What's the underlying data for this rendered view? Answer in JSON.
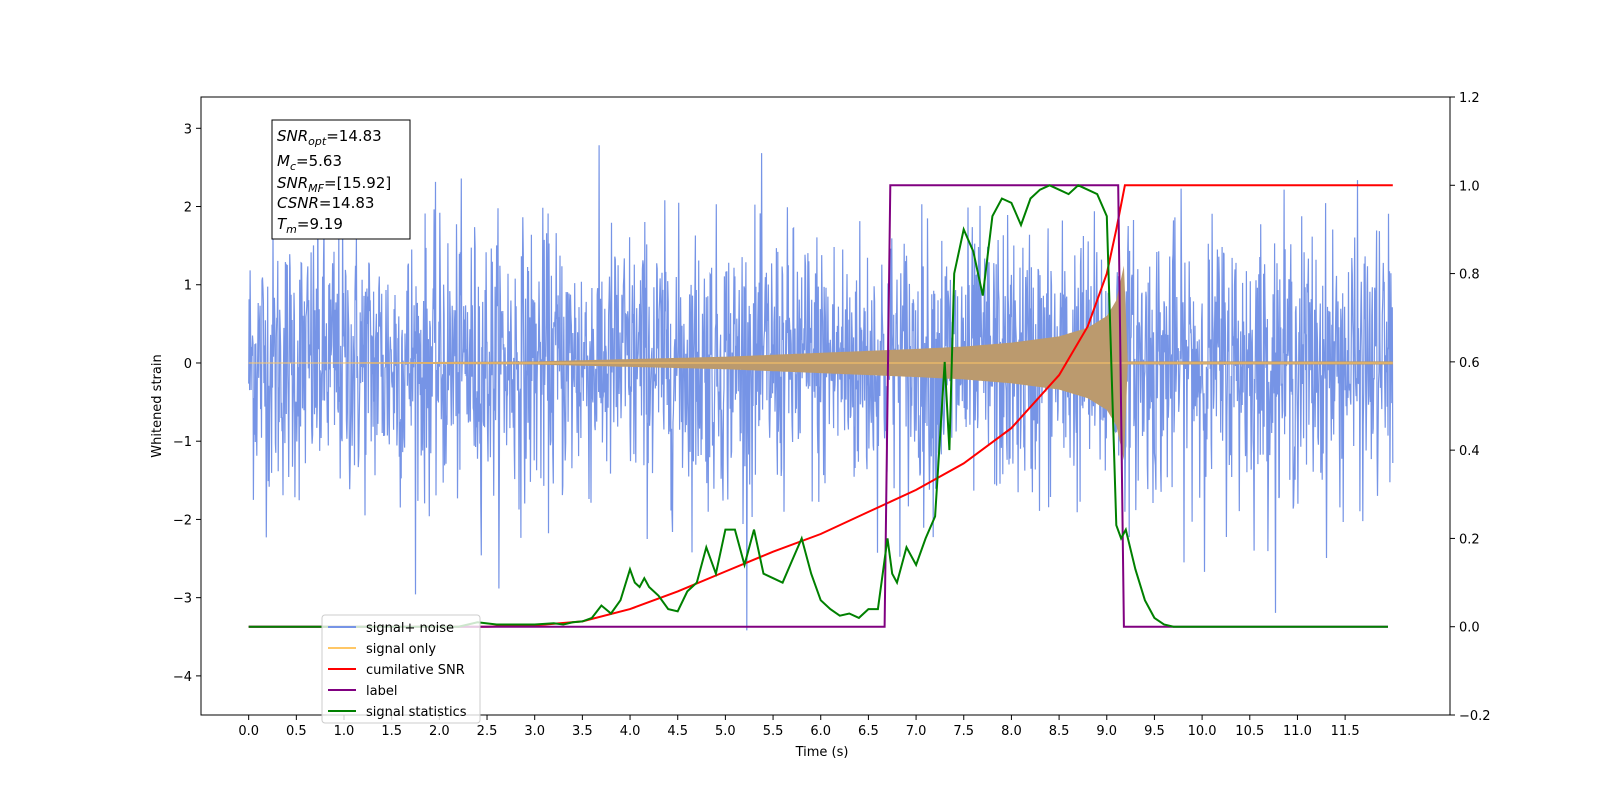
{
  "chart_data": {
    "type": "line",
    "title": "",
    "xlabel": "Time (s)",
    "ylabel": "Whitened strain",
    "xlim": [
      -0.5,
      12.6
    ],
    "ylim_left": [
      -4.5,
      3.4
    ],
    "ylim_right": [
      -0.2,
      1.2
    ],
    "x_ticks": [
      "0.0",
      "0.5",
      "1.0",
      "1.5",
      "2.0",
      "2.5",
      "3.0",
      "3.5",
      "4.0",
      "4.5",
      "5.0",
      "5.5",
      "6.0",
      "6.5",
      "7.0",
      "7.5",
      "8.0",
      "8.5",
      "9.0",
      "9.5",
      "10.0",
      "10.5",
      "11.0",
      "11.5"
    ],
    "y_ticks_left": [
      "−4",
      "−3",
      "−2",
      "−1",
      "0",
      "1",
      "2",
      "3"
    ],
    "y_ticks_right": [
      "−0.2",
      "0.0",
      "0.2",
      "0.4",
      "0.6",
      "0.8",
      "1.0",
      "1.2"
    ],
    "grid": false,
    "legend_position": "lower-left",
    "info_box": {
      "snr_opt": {
        "base": "SNR",
        "sub": "opt",
        "value": "=14.83"
      },
      "mc": {
        "base": "M",
        "sub": "c",
        "value": "=5.63"
      },
      "snr_mf": {
        "base": "SNR",
        "sub": "MF",
        "value": "=[15.92]"
      },
      "csnr": {
        "base": "CSNR",
        "sub": "",
        "value": "=14.83"
      },
      "tm": {
        "base": "T",
        "sub": "m",
        "value": "=9.19"
      }
    },
    "series": [
      {
        "name": "signal+ noise",
        "axis": "left",
        "color": "#7694e6",
        "description_note": "noisy whitened strain, roughly ±2 envelope with spikes to ±3, spanning 0 to 12 s",
        "envelope_x": [
          0.0,
          12.0
        ],
        "envelope_y": [
          -1.9,
          2.1
        ]
      },
      {
        "name": "signal only",
        "axis": "left",
        "color": "#ffc766",
        "envelope_x": [
          0.0,
          3.0,
          4.0,
          5.0,
          6.0,
          7.0,
          7.5,
          8.0,
          8.5,
          8.8,
          9.0,
          9.1,
          9.19,
          9.21,
          12.0
        ],
        "envelope_amp": [
          0.0,
          0.02,
          0.05,
          0.08,
          0.13,
          0.18,
          0.21,
          0.26,
          0.34,
          0.45,
          0.6,
          0.8,
          1.3,
          0.02,
          0.02
        ]
      },
      {
        "name": "cumilative SNR",
        "axis": "right",
        "color": "#ff0000",
        "x": [
          0.0,
          1.0,
          2.0,
          2.5,
          3.0,
          3.5,
          4.0,
          4.5,
          5.0,
          5.5,
          6.0,
          6.5,
          7.0,
          7.5,
          8.0,
          8.5,
          8.8,
          9.0,
          9.1,
          9.19,
          9.2,
          12.0
        ],
        "y": [
          0.0,
          0.0,
          0.0,
          0.0,
          0.003,
          0.012,
          0.04,
          0.08,
          0.125,
          0.17,
          0.21,
          0.26,
          0.31,
          0.37,
          0.45,
          0.57,
          0.68,
          0.8,
          0.9,
          1.0,
          1.0,
          1.0
        ]
      },
      {
        "name": "label",
        "axis": "right",
        "color": "#800080",
        "x": [
          0.0,
          6.67,
          6.73,
          9.12,
          9.18,
          11.95
        ],
        "y": [
          0.0,
          0.0,
          1.0,
          1.0,
          0.0,
          0.0
        ]
      },
      {
        "name": "signal statistics",
        "axis": "right",
        "color": "#008000",
        "x": [
          0.0,
          2.2,
          2.4,
          2.6,
          2.8,
          3.0,
          3.2,
          3.3,
          3.4,
          3.5,
          3.6,
          3.7,
          3.8,
          3.9,
          4.0,
          4.05,
          4.1,
          4.15,
          4.2,
          4.3,
          4.4,
          4.5,
          4.6,
          4.7,
          4.8,
          4.9,
          5.0,
          5.1,
          5.2,
          5.3,
          5.4,
          5.5,
          5.6,
          5.7,
          5.8,
          5.9,
          6.0,
          6.1,
          6.2,
          6.3,
          6.4,
          6.5,
          6.6,
          6.7,
          6.75,
          6.8,
          6.9,
          7.0,
          7.1,
          7.2,
          7.3,
          7.35,
          7.4,
          7.5,
          7.6,
          7.7,
          7.8,
          7.9,
          8.0,
          8.1,
          8.2,
          8.3,
          8.4,
          8.5,
          8.6,
          8.7,
          8.8,
          8.9,
          9.0,
          9.1,
          9.15,
          9.2,
          9.3,
          9.4,
          9.5,
          9.6,
          9.7,
          10.0,
          11.0,
          11.95
        ],
        "y": [
          0.0,
          0.0,
          0.01,
          0.005,
          0.005,
          0.005,
          0.008,
          0.005,
          0.01,
          0.012,
          0.02,
          0.048,
          0.03,
          0.06,
          0.13,
          0.1,
          0.09,
          0.11,
          0.09,
          0.07,
          0.04,
          0.035,
          0.08,
          0.1,
          0.18,
          0.12,
          0.22,
          0.22,
          0.14,
          0.22,
          0.12,
          0.11,
          0.1,
          0.15,
          0.2,
          0.12,
          0.06,
          0.04,
          0.025,
          0.03,
          0.02,
          0.04,
          0.04,
          0.2,
          0.12,
          0.1,
          0.18,
          0.14,
          0.2,
          0.25,
          0.6,
          0.4,
          0.8,
          0.9,
          0.85,
          0.75,
          0.93,
          0.97,
          0.96,
          0.91,
          0.97,
          0.99,
          1.0,
          0.99,
          0.98,
          1.0,
          0.99,
          0.98,
          0.93,
          0.23,
          0.2,
          0.22,
          0.13,
          0.06,
          0.02,
          0.005,
          0.0,
          0.0,
          0.0,
          0.0
        ]
      }
    ]
  }
}
